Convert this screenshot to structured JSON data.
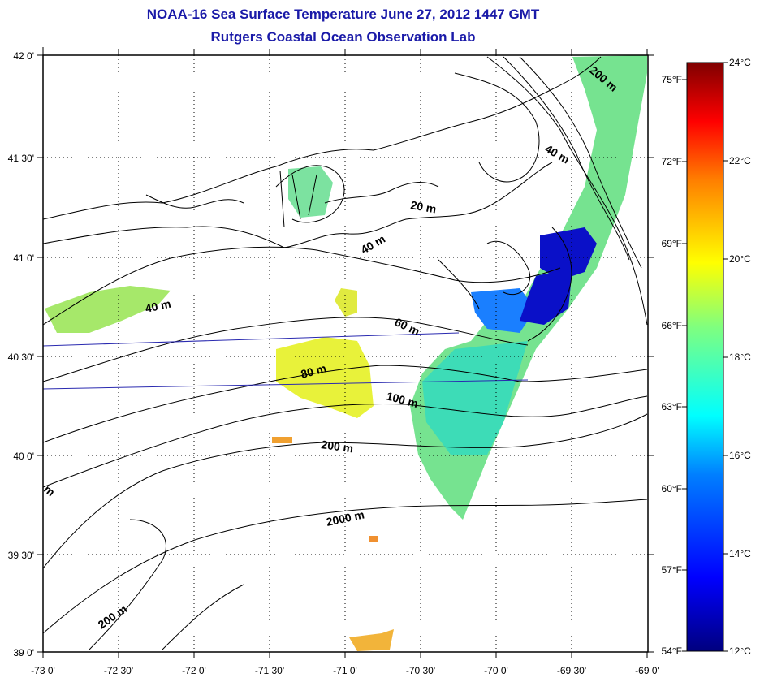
{
  "title": {
    "line1": "NOAA-16 Sea Surface Temperature June 27, 2012 1447 GMT",
    "line2": "Rutgers Coastal Ocean Observation Lab"
  },
  "colors": {
    "title": "#1a1aa8",
    "track_line": "#2a2ab0",
    "gradient_stops": [
      "#00007f",
      "#0000ff",
      "#007fff",
      "#00ffff",
      "#7fff7f",
      "#ffff00",
      "#ff7f00",
      "#ff0000",
      "#7f0000"
    ]
  },
  "map": {
    "lon_labels": [
      "-73 0'",
      "-72 30'",
      "-72 0'",
      "-71 30'",
      "-71 0'",
      "-70 30'",
      "-70 0'",
      "-69 30'",
      "-69 0'"
    ],
    "lat_labels": [
      "42 0'",
      "41 30'",
      "41 0'",
      "40 30'",
      "40 0'",
      "39 30'",
      "39 0'"
    ],
    "contour_labels": {
      "c40_west": "40 m",
      "c20": "20 m",
      "c40_mid": "40 m",
      "c40_east": "40 m",
      "c200_ne": "200 m",
      "c60": "60 m",
      "c80": "80 m",
      "c100": "100 m",
      "c200_mid": "200 m",
      "c2000": "2000 m",
      "c200_sw": "200 m",
      "c_edge": "m"
    }
  },
  "colorbar": {
    "celsius_labels": [
      "24°C",
      "22°C",
      "20°C",
      "18°C",
      "16°C",
      "14°C",
      "12°C"
    ],
    "fahrenheit_labels": [
      "75°F",
      "72°F",
      "69°F",
      "66°F",
      "63°F",
      "60°F",
      "57°F",
      "54°F"
    ]
  }
}
